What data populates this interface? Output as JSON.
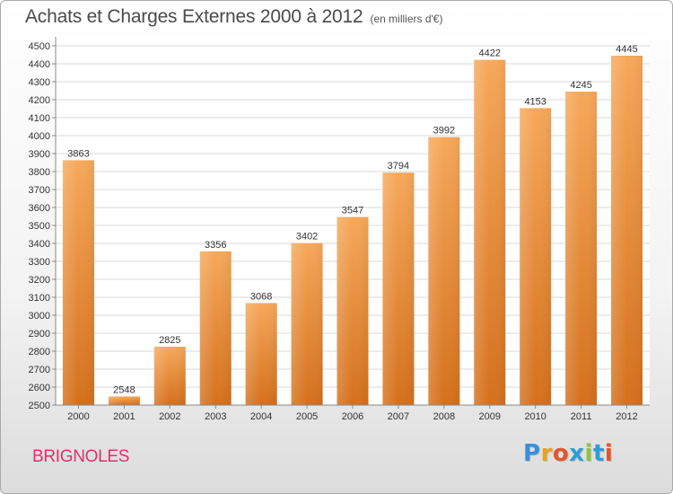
{
  "header": {
    "title": "Achats et Charges Externes 2000 à 2012",
    "unit": "(en milliers d'€)"
  },
  "footer": {
    "town": "BRIGNOLES",
    "logo_letters": [
      "P",
      "r",
      "o",
      "x",
      "i",
      "t",
      "i"
    ],
    "logo_colors": [
      "#3a8fd8",
      "#e8a21e",
      "#e3542b",
      "#2b9ed8",
      "#8cc63e",
      "#2b9ed8",
      "#e3542b"
    ]
  },
  "colors": {
    "bar_top": "#f6a85a",
    "bar_bottom": "#d4701c",
    "grid": "#d9d9d9"
  },
  "chart_data": {
    "type": "bar",
    "title": "Achats et Charges Externes 2000 à 2012",
    "xlabel": "",
    "ylabel": "",
    "categories": [
      "2000",
      "2001",
      "2002",
      "2003",
      "2004",
      "2005",
      "2006",
      "2007",
      "2008",
      "2009",
      "2010",
      "2011",
      "2012"
    ],
    "values": [
      3863,
      2548,
      2825,
      3356,
      3068,
      3402,
      3547,
      3794,
      3992,
      4422,
      4153,
      4245,
      4445
    ],
    "ylim": [
      2500,
      4500
    ],
    "ytick_step": 100,
    "grid": true
  }
}
